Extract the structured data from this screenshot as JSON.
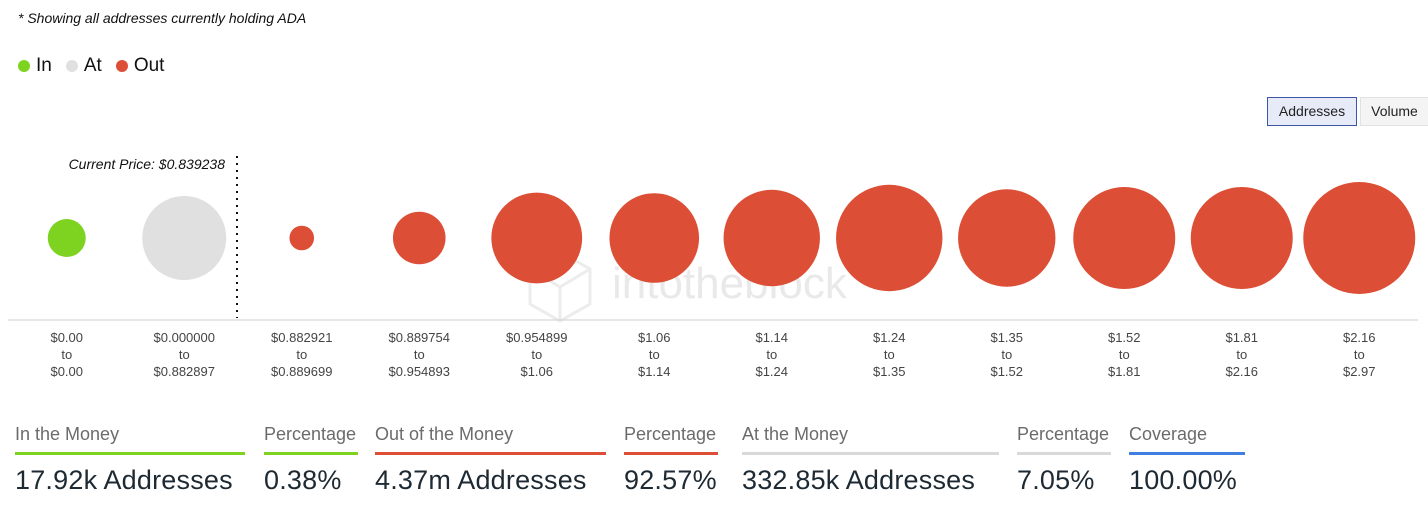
{
  "note": "* Showing all addresses currently holding ADA",
  "legend": [
    {
      "label": "In",
      "color": "#7ed321"
    },
    {
      "label": "At",
      "color": "#e0e0e0"
    },
    {
      "label": "Out",
      "color": "#dc4f36"
    }
  ],
  "toggle": {
    "addresses": "Addresses",
    "volume": "Volume",
    "active": "addresses"
  },
  "watermark": "intotheblock",
  "chart_data": {
    "type": "scatter",
    "title": "",
    "current_price_label": "Current Price: $0.839238",
    "current_price": 0.839238,
    "size_metric": "addresses",
    "categories": [
      {
        "range": [
          "$0.00",
          "to",
          "$0.00"
        ],
        "status": "in",
        "relative_size": 0.34
      },
      {
        "range": [
          "$0.000000",
          "to",
          "$0.882897"
        ],
        "status": "at",
        "relative_size": 0.75
      },
      {
        "range": [
          "$0.882921",
          "to",
          "$0.889699"
        ],
        "status": "out",
        "relative_size": 0.22
      },
      {
        "range": [
          "$0.889754",
          "to",
          "$0.954893"
        ],
        "status": "out",
        "relative_size": 0.47
      },
      {
        "range": [
          "$0.954899",
          "to",
          "$1.06"
        ],
        "status": "out",
        "relative_size": 0.81
      },
      {
        "range": [
          "$1.06",
          "to",
          "$1.14"
        ],
        "status": "out",
        "relative_size": 0.8
      },
      {
        "range": [
          "$1.14",
          "to",
          "$1.24"
        ],
        "status": "out",
        "relative_size": 0.86
      },
      {
        "range": [
          "$1.24",
          "to",
          "$1.35"
        ],
        "status": "out",
        "relative_size": 0.95
      },
      {
        "range": [
          "$1.35",
          "to",
          "$1.52"
        ],
        "status": "out",
        "relative_size": 0.87
      },
      {
        "range": [
          "$1.52",
          "to",
          "$1.81"
        ],
        "status": "out",
        "relative_size": 0.91
      },
      {
        "range": [
          "$1.81",
          "to",
          "$2.16"
        ],
        "status": "out",
        "relative_size": 0.91
      },
      {
        "range": [
          "$2.16",
          "to",
          "$2.97"
        ],
        "status": "out",
        "relative_size": 1.0
      }
    ],
    "colors": {
      "in": "#7ed321",
      "at": "#e0e0e0",
      "out": "#dc4f36"
    }
  },
  "stats": [
    {
      "label": "In the Money",
      "value": "17.92k Addresses",
      "color": "#7ed321"
    },
    {
      "label": "Percentage",
      "value": "0.38%",
      "color": "#7ed321"
    },
    {
      "label": "Out of the Money",
      "value": "4.37m Addresses",
      "color": "#dc4f36"
    },
    {
      "label": "Percentage",
      "value": "92.57%",
      "color": "#dc4f36"
    },
    {
      "label": "At the Money",
      "value": "332.85k Addresses",
      "color": "#d9d9d9"
    },
    {
      "label": "Percentage",
      "value": "7.05%",
      "color": "#d9d9d9"
    },
    {
      "label": "Coverage",
      "value": "100.00%",
      "color": "#3f7fe0"
    }
  ]
}
